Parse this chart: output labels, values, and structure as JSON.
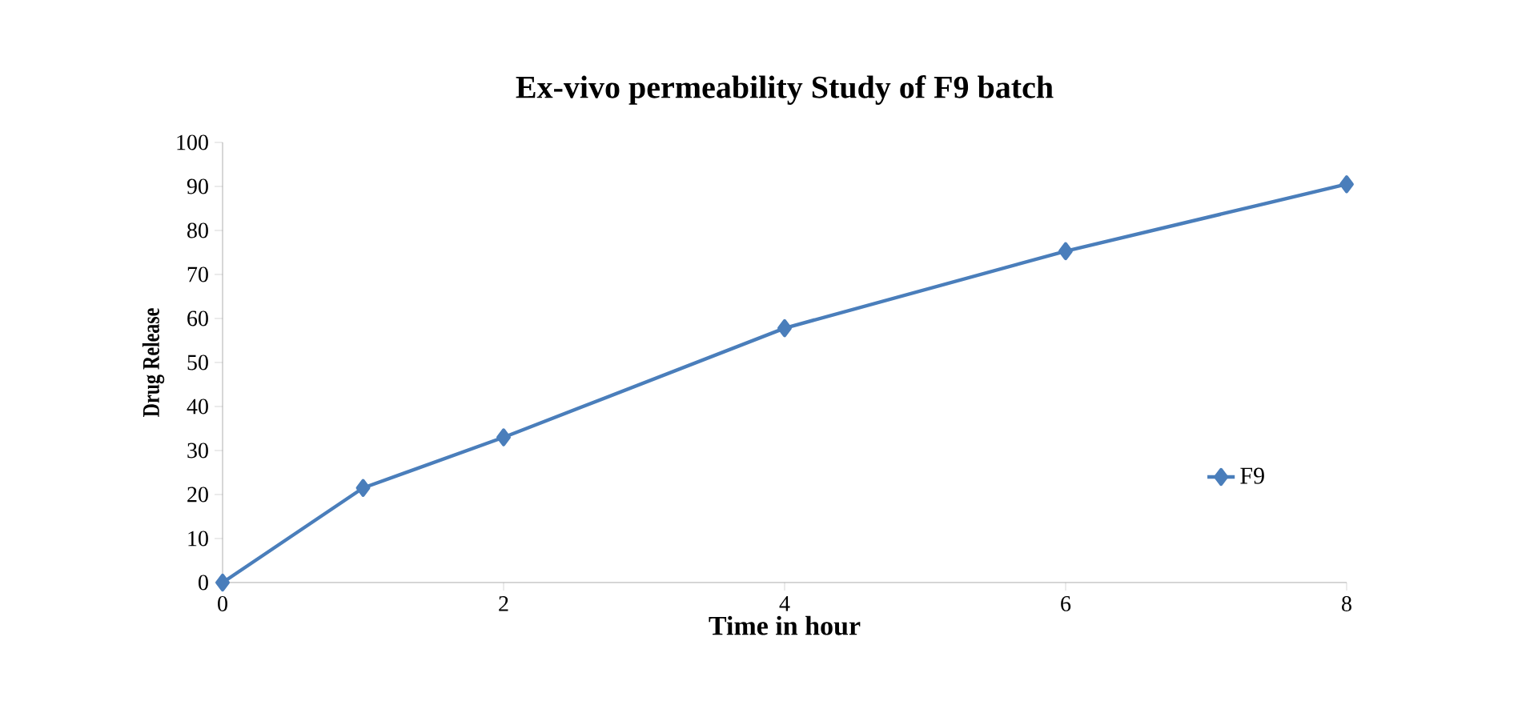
{
  "chart_data": {
    "type": "line",
    "title": "Ex-vivo permeability  Study of F9 batch",
    "xlabel": "Time in hour",
    "ylabel": "Drug Release",
    "x": [
      0,
      1,
      2,
      4,
      6,
      8
    ],
    "series": [
      {
        "name": "F9",
        "color": "#4a7ebb",
        "values": [
          0,
          21.5,
          33,
          57.8,
          75.3,
          90.5
        ]
      }
    ],
    "xlim": [
      0,
      8
    ],
    "xticks": [
      0,
      2,
      4,
      6,
      8
    ],
    "ylim": [
      0,
      100
    ],
    "yticks": [
      0,
      10,
      20,
      30,
      40,
      50,
      60,
      70,
      80,
      90,
      100
    ],
    "grid": false,
    "legend": "right",
    "marker": "diamond",
    "line_style": "solid"
  }
}
